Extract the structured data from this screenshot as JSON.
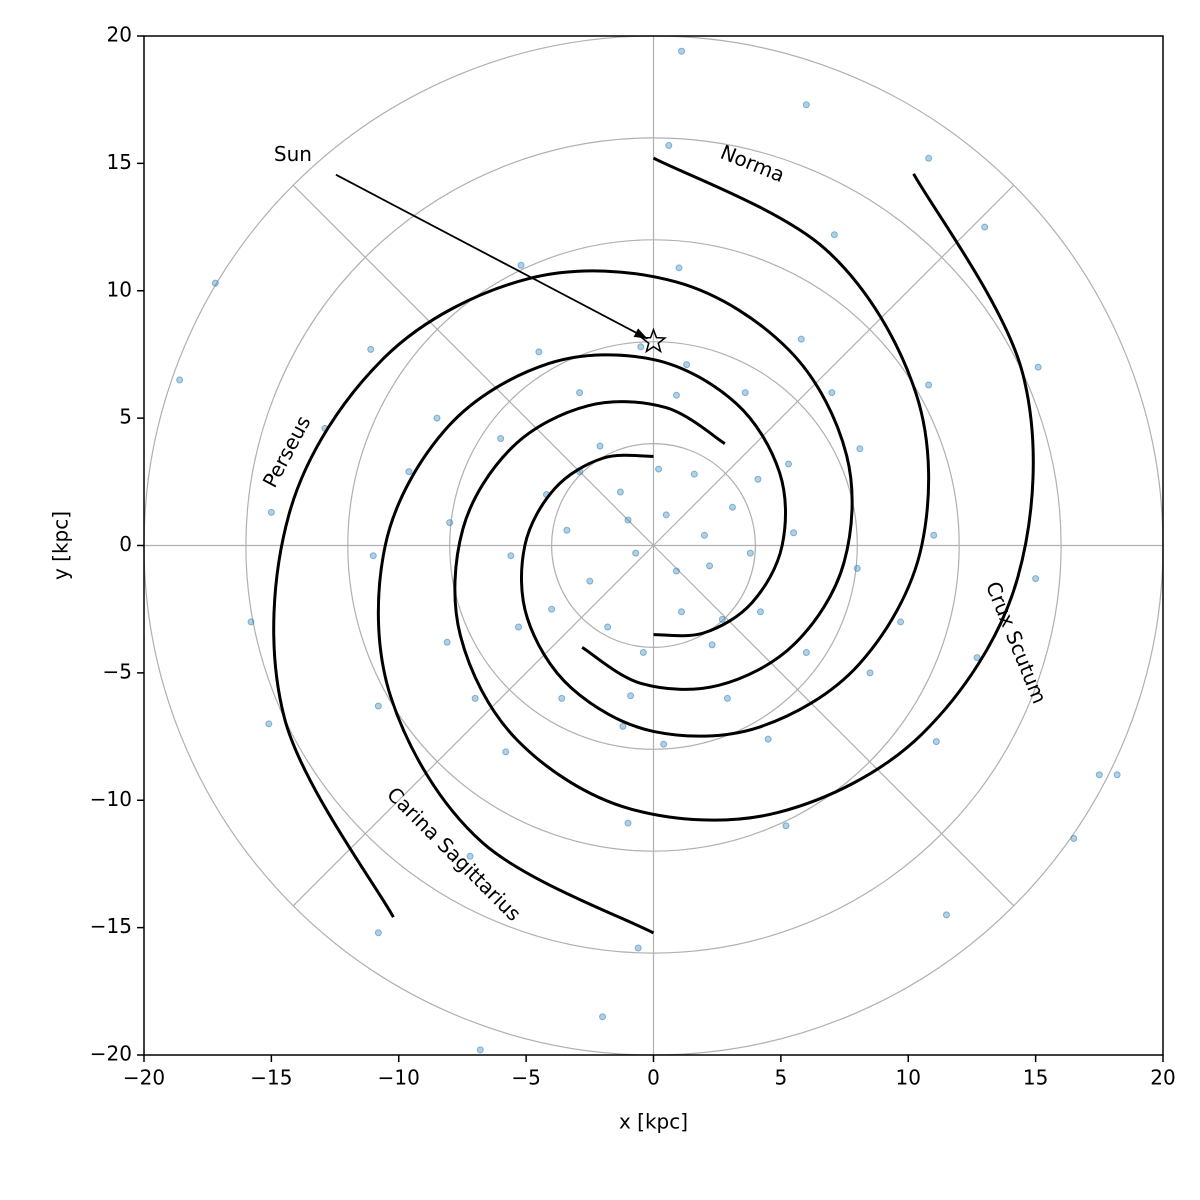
{
  "chart_data": {
    "type": "scatter",
    "xlabel": "x [kpc]",
    "ylabel": "y [kpc]",
    "xlim": [
      -20,
      20
    ],
    "ylim": [
      -20,
      20
    ],
    "xticks": [
      {
        "value": -20,
        "label": "−20"
      },
      {
        "value": -15,
        "label": "−15"
      },
      {
        "value": -10,
        "label": "−10"
      },
      {
        "value": -5,
        "label": "−5"
      },
      0,
      5,
      10,
      15,
      20
    ],
    "yticks": [
      {
        "value": -20,
        "label": "−20"
      },
      {
        "value": -15,
        "label": "−15"
      },
      {
        "value": -10,
        "label": "−10"
      },
      {
        "value": -5,
        "label": "−5"
      },
      0,
      5,
      10,
      15,
      20
    ],
    "rgrid": [
      4,
      8,
      12,
      16,
      20
    ],
    "thetagrid": [
      0,
      45,
      90,
      135,
      180,
      225,
      270,
      315
    ],
    "points": {
      "color": "#1f77b4",
      "x": [
        0.5,
        -1.3,
        2.2,
        -2.5,
        1.1,
        -0.7,
        3.1,
        -3.4,
        0.2,
        -1.8,
        2.7,
        1.6,
        -2.9,
        0.9,
        -1.0,
        3.8,
        -4.0,
        2.0,
        -0.4,
        4.1,
        -2.1,
        -4.2,
        -5.6,
        -5.3,
        -3.6,
        0.4,
        4.5,
        8.5,
        11.0,
        10.8,
        7.1,
        0.6,
        -1.2,
        9.7,
        2.3,
        4.2,
        5.5,
        5.3,
        3.6,
        -0.5,
        -4.5,
        -8.5,
        -11.0,
        -10.8,
        -7.2,
        -0.6,
        -9.6,
        1.3,
        0.9,
        -2.9,
        -6.0,
        -8.0,
        -8.1,
        -5.8,
        -1.0,
        5.2,
        11.1,
        15.0,
        15.1,
        10.8,
        12.7,
        -7.0,
        -0.9,
        2.9,
        6.0,
        8.0,
        8.1,
        5.8,
        1.0,
        -5.2,
        -11.1,
        -15.0,
        -15.1,
        -10.8,
        -12.9,
        7.0,
        17.5,
        18.2,
        -18.6,
        -17.2,
        11.5,
        -6.8,
        1.1,
        6.0,
        -2.0,
        16.5,
        -15.8,
        13.0
      ],
      "y": [
        1.2,
        2.1,
        -0.8,
        -1.4,
        -2.6,
        -0.3,
        1.5,
        0.6,
        3.0,
        -3.2,
        -2.9,
        2.8,
        2.9,
        -1.0,
        1.0,
        -0.3,
        -2.5,
        0.4,
        -4.2,
        2.6,
        3.9,
        2.0,
        -0.4,
        -3.2,
        -6.0,
        -7.8,
        -7.6,
        -5.0,
        0.4,
        6.3,
        12.2,
        15.7,
        -7.1,
        -3.0,
        -3.9,
        -2.6,
        0.5,
        3.2,
        6.0,
        7.8,
        7.6,
        5.0,
        -0.4,
        -6.3,
        -12.2,
        -15.8,
        2.9,
        7.1,
        5.9,
        6.0,
        4.2,
        0.9,
        -3.8,
        -8.1,
        -10.9,
        -11.0,
        -7.7,
        -1.3,
        7.0,
        15.2,
        -4.4,
        -6.0,
        -5.9,
        -6.0,
        -4.2,
        -0.9,
        3.8,
        8.1,
        10.9,
        11.0,
        7.7,
        1.3,
        -7.0,
        -15.2,
        4.6,
        6.0,
        -9.0,
        -9.0,
        6.5,
        10.3,
        -14.5,
        -19.8,
        19.4,
        17.3,
        -18.5,
        -11.5,
        -3.0,
        12.5
      ]
    },
    "arms": [
      {
        "color": "#000000",
        "x": [
          0,
          -1.98,
          -3.87,
          -5.05,
          -4.95,
          -3.23,
          0,
          4.12,
          8.07,
          10.53,
          10.31,
          6.73,
          0
        ],
        "y": [
          3.5,
          3.43,
          2.24,
          0,
          -2.86,
          -5.59,
          -7.3,
          -7.14,
          -4.66,
          0,
          5.95,
          11.65,
          15.21
        ]
      },
      {
        "color": "#000000",
        "x": [
          0,
          1.98,
          3.87,
          5.05,
          4.95,
          3.23,
          0,
          -4.12,
          -8.07,
          -10.53,
          -10.31,
          -6.73,
          0
        ],
        "y": [
          -3.5,
          -3.43,
          -2.24,
          0,
          2.86,
          5.59,
          7.3,
          7.14,
          4.66,
          0,
          -5.95,
          -11.65,
          -15.21
        ]
      },
      {
        "color": "#000000",
        "x": [
          2.8,
          0.47,
          -2.56,
          -5.53,
          -7.48,
          -7.58,
          -5.35,
          -0.91,
          4.89,
          10.55,
          14.3,
          14.49,
          10.21
        ],
        "y": [
          4.0,
          5.42,
          5.49,
          3.87,
          0.66,
          -3.54,
          -7.64,
          -10.34,
          -10.48,
          -7.39,
          -1.25,
          6.76,
          14.59
        ]
      },
      {
        "color": "#000000",
        "x": [
          -2.8,
          -0.47,
          2.56,
          5.53,
          7.48,
          7.58,
          5.35,
          0.91,
          -4.89,
          -10.55,
          -14.3,
          -14.49,
          -10.21
        ],
        "y": [
          -4.0,
          -5.42,
          -5.49,
          -3.87,
          -0.66,
          3.54,
          7.64,
          10.34,
          10.48,
          7.39,
          1.25,
          -6.76,
          -14.59
        ]
      }
    ],
    "sun": {
      "text": "Sun",
      "xytext": [
        -14.9,
        15.3
      ],
      "xy": [
        0,
        8
      ]
    },
    "arm_labels": [
      {
        "text": "Norma",
        "x": 3.87,
        "y": 14.94
      },
      {
        "text": "Perseus",
        "x": -14.35,
        "y": 3.66
      },
      {
        "text": "Crux Scutum",
        "x": 14.19,
        "y": -3.83
      },
      {
        "text": "Carina Sagittarius",
        "x": -7.87,
        "y": -12.15
      }
    ]
  }
}
